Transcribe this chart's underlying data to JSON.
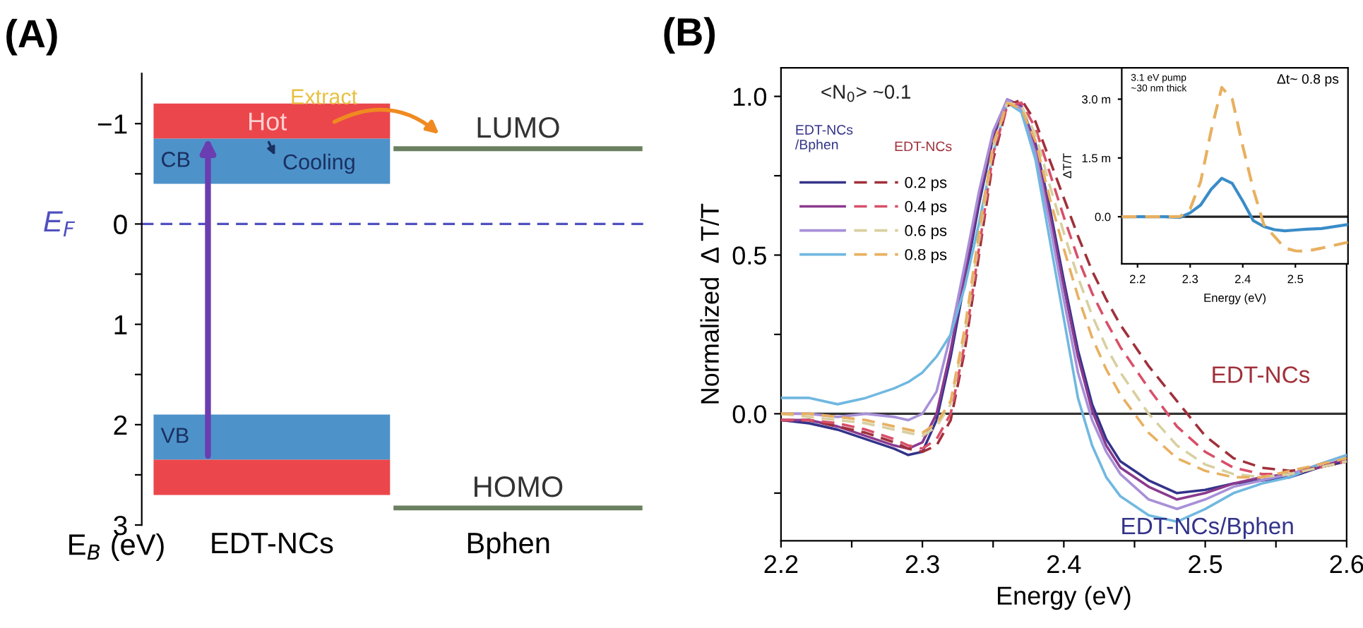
{
  "chart_data": [
    {
      "type": "bar",
      "title": "(A)",
      "categories": [
        "EDT-NCs",
        "Bphen"
      ],
      "ylabel": "E$_{B}$ (eV)",
      "ylim": [
        3,
        -1.5
      ],
      "yticks": [
        {
          "value": -1,
          "label": "−1"
        },
        0,
        1,
        2,
        3,
        {
          "value": -0.5,
          "label": null
        },
        {
          "value": 0.5,
          "label": null
        },
        {
          "value": 1.5,
          "label": null
        },
        {
          "value": 2.5,
          "label": null
        }
      ],
      "series": [
        {
          "color": "#e8262b",
          "base": [
            -0.85,
            null
          ],
          "values": [
            -0.35,
            null
          ]
        },
        {
          "name": "CB",
          "color": "#2f7fc1",
          "base": [
            -0.4,
            null
          ],
          "values": [
            -0.45,
            null
          ]
        },
        {
          "name": "VB",
          "color": "#2f7fc1",
          "base": [
            1.9,
            null
          ],
          "values": [
            0.45,
            null
          ]
        },
        {
          "color": "#e8262b",
          "base": [
            2.35,
            null
          ],
          "values": [
            0.35,
            null
          ]
        }
      ],
      "ref_lines": [
        {
          "axis": "y",
          "value": 0,
          "label": "E$_{F}$",
          "color": "#5050c0",
          "line_style": "dashed"
        },
        {
          "axis": "y",
          "value": -0.75,
          "label": "LUMO",
          "color": "#6a8060",
          "line_style": "solid"
        },
        {
          "axis": "y",
          "value": 2.83,
          "label": "HOMO",
          "color": "#6a8060",
          "line_style": "solid"
        }
      ],
      "annotations": [
        "Extract",
        "Hot",
        "Cooling"
      ],
      "grid": false
    },
    {
      "type": "line",
      "title": "(B)",
      "xlabel": "Energy (eV)",
      "ylabel": "Normalized  Δ T/T",
      "xlim": [
        2.2,
        2.6
      ],
      "ylim": [
        -0.4,
        1.09
      ],
      "xticks": [
        2.2,
        2.3,
        2.4,
        2.5,
        2.6,
        {
          "value": 2.25,
          "label": null
        },
        {
          "value": 2.35,
          "label": null
        },
        {
          "value": 2.45,
          "label": null
        },
        {
          "value": 2.55,
          "label": null
        }
      ],
      "yticks": [
        {
          "value": 0,
          "label": "0.0"
        },
        0.5,
        {
          "value": 1,
          "label": "1.0"
        },
        {
          "value": -0.25,
          "label": null
        },
        {
          "value": 0.25,
          "label": null
        },
        {
          "value": 0.75,
          "label": null
        }
      ],
      "x": [
        2.2,
        2.22,
        2.24,
        2.26,
        2.28,
        2.29,
        2.3,
        2.31,
        2.32,
        2.33,
        2.34,
        2.35,
        2.36,
        2.37,
        2.38,
        2.39,
        2.4,
        2.41,
        2.42,
        2.43,
        2.44,
        2.46,
        2.48,
        2.5,
        2.52,
        2.54,
        2.56,
        2.58,
        2.6
      ],
      "series": [
        {
          "color": "#33338a",
          "line_style": "solid",
          "values": [
            -0.02,
            -0.03,
            -0.05,
            -0.08,
            -0.11,
            -0.13,
            -0.12,
            -0.02,
            0.18,
            0.42,
            0.66,
            0.87,
            0.99,
            0.97,
            0.85,
            0.65,
            0.42,
            0.2,
            0.03,
            -0.08,
            -0.15,
            -0.21,
            -0.25,
            -0.24,
            -0.22,
            -0.21,
            -0.2,
            -0.17,
            -0.15
          ]
        },
        {
          "color": "#8a3a8e",
          "line_style": "solid",
          "values": [
            -0.02,
            -0.02,
            -0.04,
            -0.07,
            -0.1,
            -0.11,
            -0.09,
            0.0,
            0.2,
            0.44,
            0.68,
            0.88,
            0.99,
            0.97,
            0.84,
            0.63,
            0.4,
            0.18,
            0.01,
            -0.1,
            -0.17,
            -0.23,
            -0.27,
            -0.25,
            -0.22,
            -0.2,
            -0.19,
            -0.17,
            -0.14
          ]
        },
        {
          "color": "#a890d8",
          "line_style": "solid",
          "values": [
            0.0,
            0.0,
            -0.01,
            0.0,
            -0.01,
            -0.02,
            0.0,
            0.07,
            0.25,
            0.47,
            0.7,
            0.89,
            0.99,
            0.96,
            0.82,
            0.6,
            0.36,
            0.13,
            -0.02,
            -0.12,
            -0.19,
            -0.27,
            -0.3,
            -0.27,
            -0.23,
            -0.21,
            -0.19,
            -0.16,
            -0.13
          ]
        },
        {
          "color": "#70b8e0",
          "line_style": "solid",
          "values": [
            0.05,
            0.05,
            0.03,
            0.05,
            0.08,
            0.1,
            0.13,
            0.18,
            0.25,
            0.4,
            0.6,
            0.82,
            0.98,
            0.95,
            0.8,
            0.55,
            0.3,
            0.05,
            -0.1,
            -0.2,
            -0.26,
            -0.32,
            -0.34,
            -0.3,
            -0.25,
            -0.22,
            -0.2,
            -0.16,
            -0.13
          ]
        },
        {
          "name": "0.2 ps",
          "color": "#a0303a",
          "line_style": "dashed",
          "values": [
            -0.02,
            -0.02,
            -0.04,
            -0.06,
            -0.09,
            -0.11,
            -0.12,
            -0.1,
            -0.02,
            0.2,
            0.5,
            0.8,
            0.97,
            0.99,
            0.92,
            0.8,
            0.68,
            0.56,
            0.45,
            0.36,
            0.28,
            0.15,
            0.04,
            -0.07,
            -0.14,
            -0.17,
            -0.18,
            -0.17,
            -0.15
          ]
        },
        {
          "name": "0.4 ps",
          "color": "#d8506a",
          "line_style": "dashed",
          "values": [
            -0.02,
            -0.02,
            -0.03,
            -0.05,
            -0.08,
            -0.1,
            -0.11,
            -0.08,
            0.0,
            0.22,
            0.52,
            0.82,
            0.97,
            0.98,
            0.9,
            0.76,
            0.62,
            0.49,
            0.38,
            0.29,
            0.21,
            0.08,
            -0.04,
            -0.12,
            -0.17,
            -0.19,
            -0.19,
            -0.17,
            -0.15
          ]
        },
        {
          "name": "0.6 ps",
          "color": "#d8d0a0",
          "line_style": "dashed",
          "values": [
            0.0,
            -0.01,
            -0.02,
            -0.03,
            -0.05,
            -0.06,
            -0.07,
            -0.04,
            0.03,
            0.25,
            0.55,
            0.84,
            0.98,
            0.97,
            0.88,
            0.72,
            0.57,
            0.43,
            0.31,
            0.21,
            0.13,
            0.0,
            -0.1,
            -0.16,
            -0.19,
            -0.2,
            -0.19,
            -0.17,
            -0.15
          ]
        },
        {
          "name": "0.8 ps",
          "color": "#e8b060",
          "line_style": "dashed",
          "values": [
            0.0,
            0.0,
            -0.01,
            -0.02,
            -0.04,
            -0.05,
            -0.06,
            -0.03,
            0.04,
            0.27,
            0.57,
            0.85,
            0.98,
            0.96,
            0.86,
            0.68,
            0.52,
            0.37,
            0.24,
            0.14,
            0.06,
            -0.06,
            -0.14,
            -0.18,
            -0.2,
            -0.2,
            -0.18,
            -0.16,
            -0.14
          ]
        }
      ],
      "ref_lines": [
        {
          "axis": "y",
          "value": 0,
          "color": "#333333",
          "line_style": "solid"
        }
      ],
      "annotations": [
        "<N$_{0}$> ~0.1",
        "EDT-NCs\n/Bphen",
        "EDT-NCs",
        "EDT-NCs",
        "EDT-NCs/Bphen"
      ],
      "legend": "top left",
      "grid": false
    },
    {
      "type": "line",
      "xlabel": "Energy (eV)",
      "ylabel": "ΔT/T",
      "xlim": [
        2.17,
        2.6
      ],
      "ylim": [
        -1.2,
        3.8
      ],
      "xticks": [
        2.2,
        2.3,
        2.4,
        2.5
      ],
      "yticks": [
        {
          "value": 0.0,
          "label": "0.0"
        },
        {
          "value": 1.5,
          "label": "1.5 m"
        },
        {
          "value": 3.0,
          "label": "3.0 m"
        }
      ],
      "x": [
        2.17,
        2.2,
        2.25,
        2.28,
        2.3,
        2.32,
        2.34,
        2.36,
        2.38,
        2.4,
        2.42,
        2.44,
        2.46,
        2.48,
        2.5,
        2.52,
        2.55,
        2.6
      ],
      "series": [
        {
          "color": "#3a8cc8",
          "line_style": "solid",
          "values": [
            0,
            0,
            0,
            -0.02,
            0.1,
            0.3,
            0.7,
            0.98,
            0.85,
            0.4,
            -0.1,
            -0.25,
            -0.33,
            -0.36,
            -0.34,
            -0.32,
            -0.3,
            -0.2
          ]
        },
        {
          "color": "#e8b060",
          "line_style": "dashed",
          "values": [
            0,
            0,
            0,
            0,
            0.2,
            0.9,
            2.2,
            3.3,
            3.0,
            1.8,
            0.7,
            -0.2,
            -0.5,
            -0.8,
            -0.87,
            -0.88,
            -0.8,
            -0.65
          ]
        }
      ],
      "ref_lines": [
        {
          "axis": "y",
          "value": 0,
          "color": "#222222",
          "line_style": "solid"
        }
      ],
      "annotations": [
        "3.1 eV pump\n~30 nm thick",
        "Δt~ 0.8 ps"
      ],
      "grid": false
    }
  ]
}
